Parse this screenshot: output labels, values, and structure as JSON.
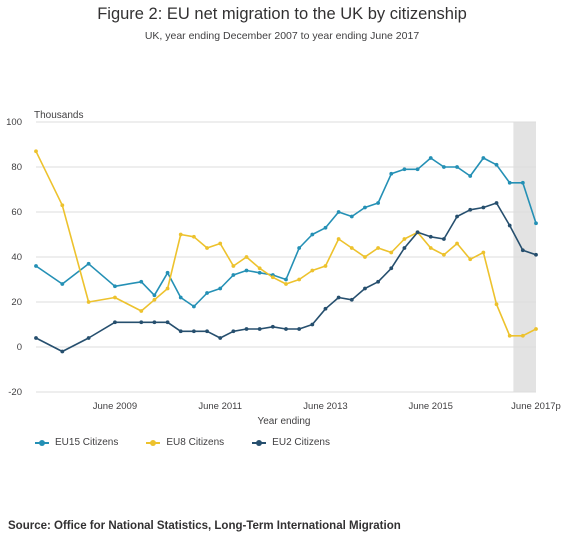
{
  "title": "Figure 2: EU net migration to the UK by citizenship",
  "subtitle": "UK, year ending December 2007 to year ending June 2017",
  "source": "Source: Office for National Statistics, Long-Term International Migration",
  "colors": {
    "eu15": "#2490b5",
    "eu8": "#edc22d",
    "eu2": "#264f6e",
    "shade": "#e3e3e3",
    "grid": "#dddddd"
  },
  "chart_data": {
    "type": "line",
    "ylabel": "Thousands",
    "xlabel": "Year ending",
    "ylim": [
      -20,
      100
    ],
    "yticks": [
      -20,
      0,
      20,
      40,
      60,
      80,
      100
    ],
    "x": [
      "Dec 2007",
      "Mar 2008",
      "Jun 2008",
      "Sep 2008",
      "Dec 2008",
      "Mar 2009",
      "Jun 2009",
      "Sep 2009",
      "Dec 2009",
      "Mar 2010",
      "Jun 2010",
      "Sep 2010",
      "Dec 2010",
      "Mar 2011",
      "Jun 2011",
      "Sep 2011",
      "Dec 2011",
      "Mar 2012",
      "Jun 2012",
      "Sep 2012",
      "Dec 2012",
      "Mar 2013",
      "Jun 2013",
      "Sep 2013",
      "Dec 2013",
      "Mar 2014",
      "Jun 2014",
      "Sep 2014",
      "Dec 2014",
      "Mar 2015",
      "Jun 2015",
      "Sep 2015",
      "Dec 2015",
      "Mar 2016",
      "Jun 2016",
      "Sep 2016",
      "Dec 2016",
      "Mar 2017",
      "Jun 2017"
    ],
    "xtick_labels": [
      {
        "index": 6,
        "label": "June 2009"
      },
      {
        "index": 14,
        "label": "June 2011"
      },
      {
        "index": 22,
        "label": "June 2013"
      },
      {
        "index": 30,
        "label": "June 2015"
      },
      {
        "index": 38,
        "label": "June 2017p"
      }
    ],
    "shaded_from_index": 37.8,
    "series": [
      {
        "name": "EU15 Citizens",
        "key": "eu15",
        "points": [
          [
            0,
            36
          ],
          [
            2,
            28
          ],
          [
            4,
            37
          ],
          [
            6,
            27
          ],
          [
            8,
            29
          ],
          [
            9,
            23
          ],
          [
            10,
            33
          ],
          [
            11,
            22
          ],
          [
            12,
            18
          ],
          [
            13,
            24
          ],
          [
            14,
            26
          ],
          [
            15,
            32
          ],
          [
            16,
            34
          ],
          [
            17,
            33
          ],
          [
            18,
            32
          ],
          [
            19,
            30
          ],
          [
            20,
            44
          ],
          [
            21,
            50
          ],
          [
            22,
            53
          ],
          [
            23,
            60
          ],
          [
            24,
            58
          ],
          [
            25,
            62
          ],
          [
            26,
            64
          ],
          [
            27,
            77
          ],
          [
            28,
            79
          ],
          [
            29,
            79
          ],
          [
            30,
            84
          ],
          [
            31,
            80
          ],
          [
            32,
            80
          ],
          [
            33,
            76
          ],
          [
            34,
            84
          ],
          [
            35,
            81
          ],
          [
            36,
            73
          ],
          [
            37,
            73
          ],
          [
            38,
            55
          ]
        ]
      },
      {
        "name": "EU8 Citizens",
        "key": "eu8",
        "points": [
          [
            0,
            87
          ],
          [
            2,
            63
          ],
          [
            4,
            20
          ],
          [
            6,
            22
          ],
          [
            8,
            16
          ],
          [
            9,
            21
          ],
          [
            10,
            26
          ],
          [
            11,
            50
          ],
          [
            12,
            49
          ],
          [
            13,
            44
          ],
          [
            14,
            46
          ],
          [
            15,
            36
          ],
          [
            16,
            40
          ],
          [
            17,
            35
          ],
          [
            18,
            31
          ],
          [
            19,
            28
          ],
          [
            20,
            30
          ],
          [
            21,
            34
          ],
          [
            22,
            36
          ],
          [
            23,
            48
          ],
          [
            24,
            44
          ],
          [
            25,
            40
          ],
          [
            26,
            44
          ],
          [
            27,
            42
          ],
          [
            28,
            48
          ],
          [
            29,
            51
          ],
          [
            30,
            44
          ],
          [
            31,
            41
          ],
          [
            32,
            46
          ],
          [
            33,
            39
          ],
          [
            34,
            42
          ],
          [
            35,
            19
          ],
          [
            36,
            5
          ],
          [
            37,
            5
          ],
          [
            38,
            8
          ]
        ]
      },
      {
        "name": "EU2 Citizens",
        "key": "eu2",
        "points": [
          [
            0,
            4
          ],
          [
            2,
            -2
          ],
          [
            4,
            4
          ],
          [
            6,
            11
          ],
          [
            8,
            11
          ],
          [
            9,
            11
          ],
          [
            10,
            11
          ],
          [
            11,
            7
          ],
          [
            12,
            7
          ],
          [
            13,
            7
          ],
          [
            14,
            4
          ],
          [
            15,
            7
          ],
          [
            16,
            8
          ],
          [
            17,
            8
          ],
          [
            18,
            9
          ],
          [
            19,
            8
          ],
          [
            20,
            8
          ],
          [
            21,
            10
          ],
          [
            22,
            17
          ],
          [
            23,
            22
          ],
          [
            24,
            21
          ],
          [
            25,
            26
          ],
          [
            26,
            29
          ],
          [
            27,
            35
          ],
          [
            28,
            44
          ],
          [
            29,
            51
          ],
          [
            30,
            49
          ],
          [
            31,
            48
          ],
          [
            32,
            58
          ],
          [
            33,
            61
          ],
          [
            34,
            62
          ],
          [
            35,
            64
          ],
          [
            36,
            54
          ],
          [
            37,
            43
          ],
          [
            38,
            41
          ]
        ]
      }
    ]
  }
}
